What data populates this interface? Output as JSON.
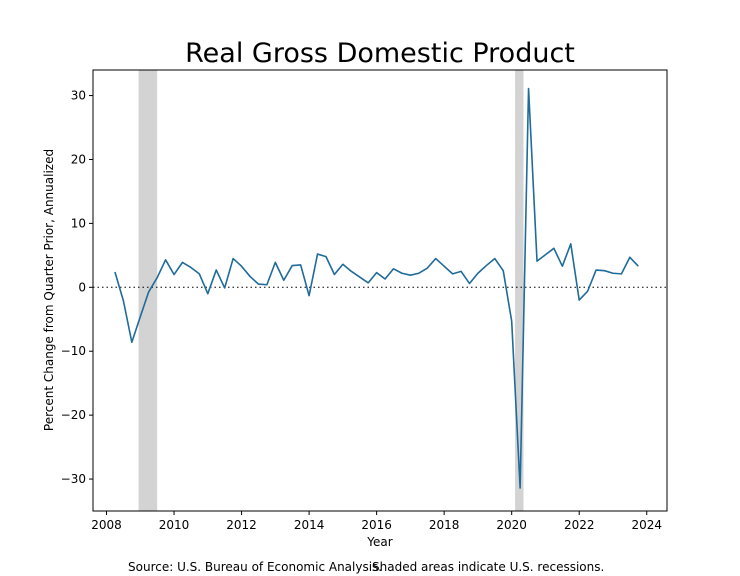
{
  "chart_data": {
    "type": "line",
    "title": "Real Gross Domestic Product",
    "xlabel": "Year",
    "ylabel": "Percent Change from Quarter Prior, Annualized",
    "xlim": [
      2007.6,
      2024.6
    ],
    "ylim": [
      -35,
      34
    ],
    "x_ticks": [
      2008,
      2010,
      2012,
      2014,
      2016,
      2018,
      2020,
      2022,
      2024
    ],
    "y_ticks": [
      -30,
      -20,
      -10,
      0,
      10,
      20,
      30
    ],
    "series": [
      {
        "color": "#1f6b9a",
        "x": [
          2008.25,
          2008.5,
          2008.75,
          2009.0,
          2009.25,
          2009.5,
          2009.75,
          2010.0,
          2010.25,
          2010.5,
          2010.75,
          2011.0,
          2011.25,
          2011.5,
          2011.75,
          2012.0,
          2012.25,
          2012.5,
          2012.75,
          2013.0,
          2013.25,
          2013.5,
          2013.75,
          2014.0,
          2014.25,
          2014.5,
          2014.75,
          2015.0,
          2015.25,
          2015.5,
          2015.75,
          2016.0,
          2016.25,
          2016.5,
          2016.75,
          2017.0,
          2017.25,
          2017.5,
          2017.75,
          2018.0,
          2018.25,
          2018.5,
          2018.75,
          2019.0,
          2019.25,
          2019.5,
          2019.75,
          2020.0,
          2020.25,
          2020.5,
          2020.75,
          2021.0,
          2021.25,
          2021.5,
          2021.75,
          2022.0,
          2022.25,
          2022.5,
          2022.75,
          2023.0,
          2023.25,
          2023.5,
          2023.75
        ],
        "values": [
          2.4,
          -2.1,
          -8.6,
          -4.6,
          -0.7,
          1.5,
          4.3,
          2.0,
          3.9,
          3.1,
          2.1,
          -1.0,
          2.7,
          -0.1,
          4.5,
          3.3,
          1.7,
          0.5,
          0.4,
          3.9,
          1.1,
          3.4,
          3.5,
          -1.3,
          5.2,
          4.8,
          2.0,
          3.6,
          2.5,
          1.6,
          0.7,
          2.3,
          1.3,
          2.9,
          2.2,
          1.9,
          2.2,
          3.0,
          4.5,
          3.3,
          2.1,
          2.5,
          0.6,
          2.2,
          3.4,
          4.5,
          2.6,
          -5.3,
          -31.4,
          31.1,
          4.1,
          5.1,
          6.1,
          3.3,
          6.8,
          -2.0,
          -0.6,
          2.7,
          2.6,
          2.2,
          2.1,
          4.7,
          3.3
        ]
      }
    ],
    "recessions": [
      [
        2008.95,
        2009.5
      ],
      [
        2020.1,
        2020.35
      ]
    ],
    "recession_color": "#d3d3d3",
    "zero_line": true,
    "grid": false
  },
  "footer": {
    "source_text": "Source: U.S. Bureau of Economic Analysis.",
    "recession_note": "Shaded areas indicate U.S. recessions."
  }
}
